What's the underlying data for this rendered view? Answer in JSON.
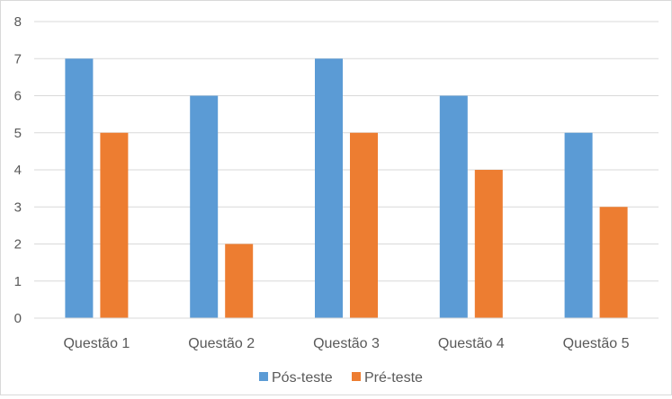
{
  "chart_data": {
    "type": "bar",
    "categories": [
      "Questão 1",
      "Questão 2",
      "Questão 3",
      "Questão 4",
      "Questão 5"
    ],
    "series": [
      {
        "name": "Pós-teste",
        "values": [
          7,
          6,
          7,
          6,
          5
        ],
        "color": "#5B9BD5"
      },
      {
        "name": "Pré-teste",
        "values": [
          5,
          2,
          5,
          4,
          3
        ],
        "color": "#ED7D31"
      }
    ],
    "ylim": [
      0,
      8
    ],
    "yticks": [
      "0",
      "1",
      "2",
      "3",
      "4",
      "5",
      "6",
      "7",
      "8"
    ],
    "grid": true,
    "legend": "bottom",
    "title": "",
    "xlabel": "",
    "ylabel": ""
  }
}
